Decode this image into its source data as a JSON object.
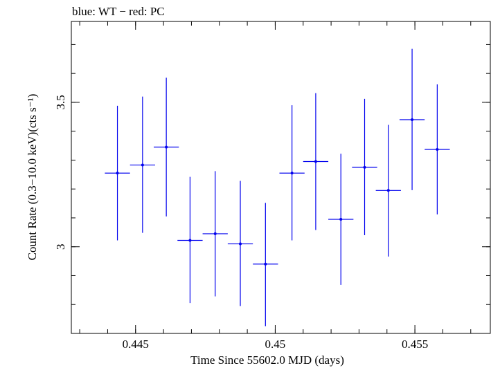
{
  "chart_data": {
    "type": "scatter",
    "title": "blue: WT − red: PC",
    "xlabel": "Time Since 55602.0 MJD (days)",
    "ylabel": "Count Rate (0.3−10.0 keV)(cts s⁻¹)",
    "xlim": [
      0.4427,
      0.4577
    ],
    "ylim": [
      2.7,
      3.78
    ],
    "x_major_ticks": [
      0.445,
      0.45,
      0.455
    ],
    "x_tick_labels": [
      "0.445",
      "0.45",
      "0.455"
    ],
    "x_minor_step": 0.001,
    "y_major_ticks": [
      3.0,
      3.5
    ],
    "y_tick_labels": [
      "3",
      "3.5"
    ],
    "y_minor_step": 0.1,
    "series": [
      {
        "name": "WT",
        "color": "#0000ee",
        "points": [
          {
            "x": 0.44435,
            "y": 3.255,
            "xerr": 0.00045,
            "ylo": 3.022,
            "yhi": 3.488
          },
          {
            "x": 0.44525,
            "y": 3.283,
            "xerr": 0.00045,
            "ylo": 3.048,
            "yhi": 3.52
          },
          {
            "x": 0.4461,
            "y": 3.345,
            "xerr": 0.00045,
            "ylo": 3.105,
            "yhi": 3.585
          },
          {
            "x": 0.44695,
            "y": 3.022,
            "xerr": 0.00045,
            "ylo": 2.805,
            "yhi": 3.242
          },
          {
            "x": 0.44785,
            "y": 3.045,
            "xerr": 0.00045,
            "ylo": 2.828,
            "yhi": 3.262
          },
          {
            "x": 0.44875,
            "y": 3.01,
            "xerr": 0.00045,
            "ylo": 2.795,
            "yhi": 3.228
          },
          {
            "x": 0.44965,
            "y": 2.94,
            "xerr": 0.00045,
            "ylo": 2.725,
            "yhi": 3.152
          },
          {
            "x": 0.4506,
            "y": 3.255,
            "xerr": 0.00045,
            "ylo": 3.022,
            "yhi": 3.49
          },
          {
            "x": 0.45145,
            "y": 3.295,
            "xerr": 0.00045,
            "ylo": 3.058,
            "yhi": 3.532
          },
          {
            "x": 0.45235,
            "y": 3.095,
            "xerr": 0.00045,
            "ylo": 2.868,
            "yhi": 3.322
          },
          {
            "x": 0.4532,
            "y": 3.275,
            "xerr": 0.00045,
            "ylo": 3.04,
            "yhi": 3.512
          },
          {
            "x": 0.45405,
            "y": 3.195,
            "xerr": 0.00045,
            "ylo": 2.966,
            "yhi": 3.422
          },
          {
            "x": 0.4549,
            "y": 3.44,
            "xerr": 0.00045,
            "ylo": 3.196,
            "yhi": 3.685
          },
          {
            "x": 0.4558,
            "y": 3.337,
            "xerr": 0.00045,
            "ylo": 3.112,
            "yhi": 3.562
          }
        ]
      }
    ]
  }
}
